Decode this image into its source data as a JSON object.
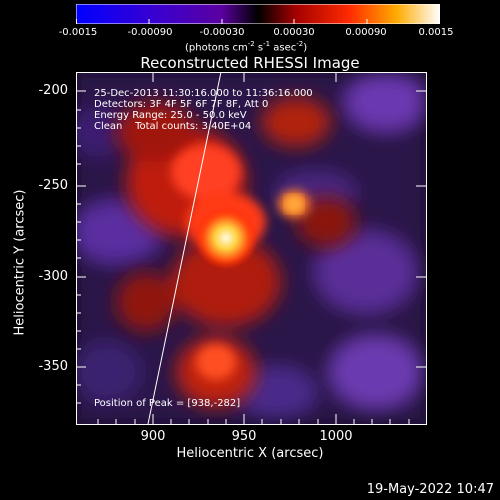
{
  "colorbar": {
    "ticks": [
      "-0.0015",
      "-0.00090",
      "-0.00030",
      "0.00030",
      "0.00090",
      "0.0015"
    ],
    "units_main": "(photons cm",
    "units_exp1": "-2",
    "units_mid": " s",
    "units_exp2": "-1",
    "units_mid2": " asec",
    "units_exp3": "-2",
    "units_end": ")"
  },
  "title": "Reconstructed RHESSI Image",
  "info": {
    "time": "25-Dec-2013 11:30:16.000 to 11:36:16.000",
    "detectors": "Detectors: 3F 4F 5F 6F 7F 8F, Att 0",
    "energy": "Energy Range: 25.0 - 50.0 keV",
    "clean": "Clean    Total counts: 3.40E+04"
  },
  "peak": "Position of Peak = [938,-282]",
  "axes": {
    "xlabel": "Heliocentric X (arcsec)",
    "ylabel": "Heliocentric Y (arcsec)",
    "xticks": [
      "900",
      "950",
      "1000"
    ],
    "yticks": [
      "-200",
      "-250",
      "-300",
      "-350"
    ]
  },
  "timestamp": "19-May-2022 10:47",
  "colors": {
    "background": "#000000",
    "negative": "#4a2a8a",
    "positive": "#e0301a",
    "peak": "#fff6c0"
  }
}
